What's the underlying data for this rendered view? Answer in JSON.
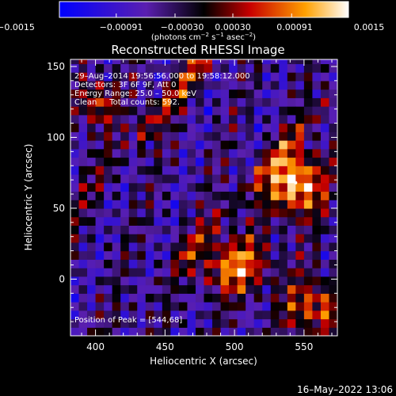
{
  "chart_data": {
    "type": "heatmap",
    "title": "Reconstructed RHESSI Image",
    "xlabel": "Heliocentric X (arcsec)",
    "ylabel": "Heliocentric Y (arcsec)",
    "xlim": [
      382,
      574
    ],
    "ylim": [
      -40,
      155
    ],
    "x_ticks": [
      "400",
      "450",
      "500",
      "550"
    ],
    "x_tick_values": [
      400,
      450,
      500,
      550
    ],
    "y_ticks": [
      "0",
      "50",
      "100",
      "150"
    ],
    "y_tick_values": [
      0,
      50,
      100,
      150
    ],
    "colorbar": {
      "min": -0.0015,
      "max": 0.0015,
      "tick_labels": [
        "−0.0015",
        "−0.00091",
        "−0.00030",
        "0.00030",
        "0.00091",
        "0.0015"
      ],
      "tick_values": [
        -0.0015,
        -0.00091,
        -0.0003,
        0.0003,
        0.00091,
        0.0015
      ],
      "unit_label_main": "(photons cm",
      "unit_sup1": "−2",
      "unit_mid": " s",
      "unit_sup2": "−1",
      "unit_end": " asec",
      "unit_sup3": "−2",
      "unit_close": ")"
    },
    "annotations": {
      "line1": "29–Aug–2014 19:56:56.000 to 19:58:12.000",
      "line2": "Detectors: 3F 6F 9F, Att 0",
      "line3": "Energy Range: 25.0 – 50.0 keV",
      "line4": "Clean     Total counts: 592.",
      "peak": "Position of Peak = [544,68]"
    },
    "peak": {
      "x": 544,
      "y": 68
    },
    "footer_date": "16–May–2022 13:06"
  }
}
